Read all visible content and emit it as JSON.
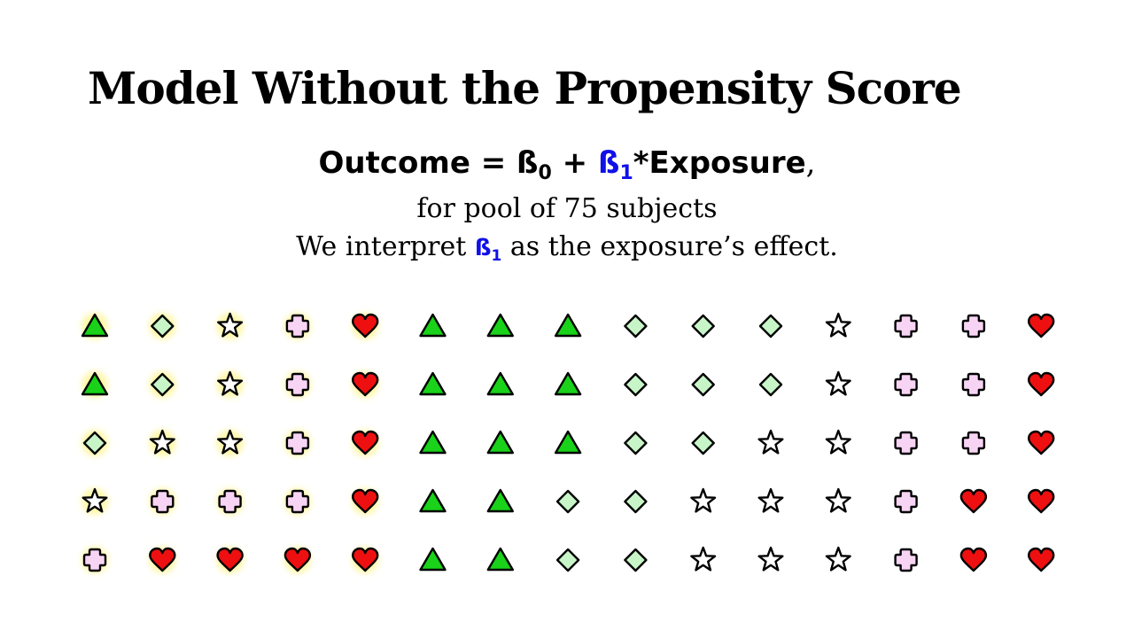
{
  "title": "Model Without the Propensity Score",
  "equation": {
    "lhs": "Outcome = ß",
    "b0_sub": "0",
    "plus": " + ",
    "b1": "ß",
    "b1_sub": "1",
    "rest": "*Exposure",
    "comma": ","
  },
  "subtitle": "for pool of 75 subjects",
  "interpret": {
    "before": "We interpret ",
    "beta": "ß",
    "beta_sub": "1",
    "after": " as the exposure’s effect."
  },
  "colors": {
    "accent_blue": "#1010e8",
    "highlight_glow": "#fff7a8",
    "triangle_fill": "#19d219",
    "diamond_fill": "#c8f5c8",
    "star_fill": "#ffffff",
    "cross_fill": "#f8d4f4",
    "heart_fill": "#ee1010"
  },
  "subjects": {
    "rows": [
      [
        "triangle",
        "diamond",
        "star",
        "cross",
        "heart",
        "triangle",
        "triangle",
        "triangle",
        "diamond",
        "diamond",
        "diamond",
        "star",
        "cross",
        "cross",
        "heart"
      ],
      [
        "triangle",
        "diamond",
        "star",
        "cross",
        "heart",
        "triangle",
        "triangle",
        "triangle",
        "diamond",
        "diamond",
        "diamond",
        "star",
        "cross",
        "cross",
        "heart"
      ],
      [
        "diamond",
        "star",
        "star",
        "cross",
        "heart",
        "triangle",
        "triangle",
        "triangle",
        "diamond",
        "diamond",
        "star",
        "star",
        "cross",
        "cross",
        "heart"
      ],
      [
        "star",
        "cross",
        "cross",
        "cross",
        "heart",
        "triangle",
        "triangle",
        "diamond",
        "diamond",
        "star",
        "star",
        "star",
        "cross",
        "heart",
        "heart"
      ],
      [
        "cross",
        "heart",
        "heart",
        "heart",
        "heart",
        "triangle",
        "triangle",
        "diamond",
        "diamond",
        "star",
        "star",
        "star",
        "cross",
        "heart",
        "heart"
      ]
    ],
    "highlighted_columns": 5
  }
}
